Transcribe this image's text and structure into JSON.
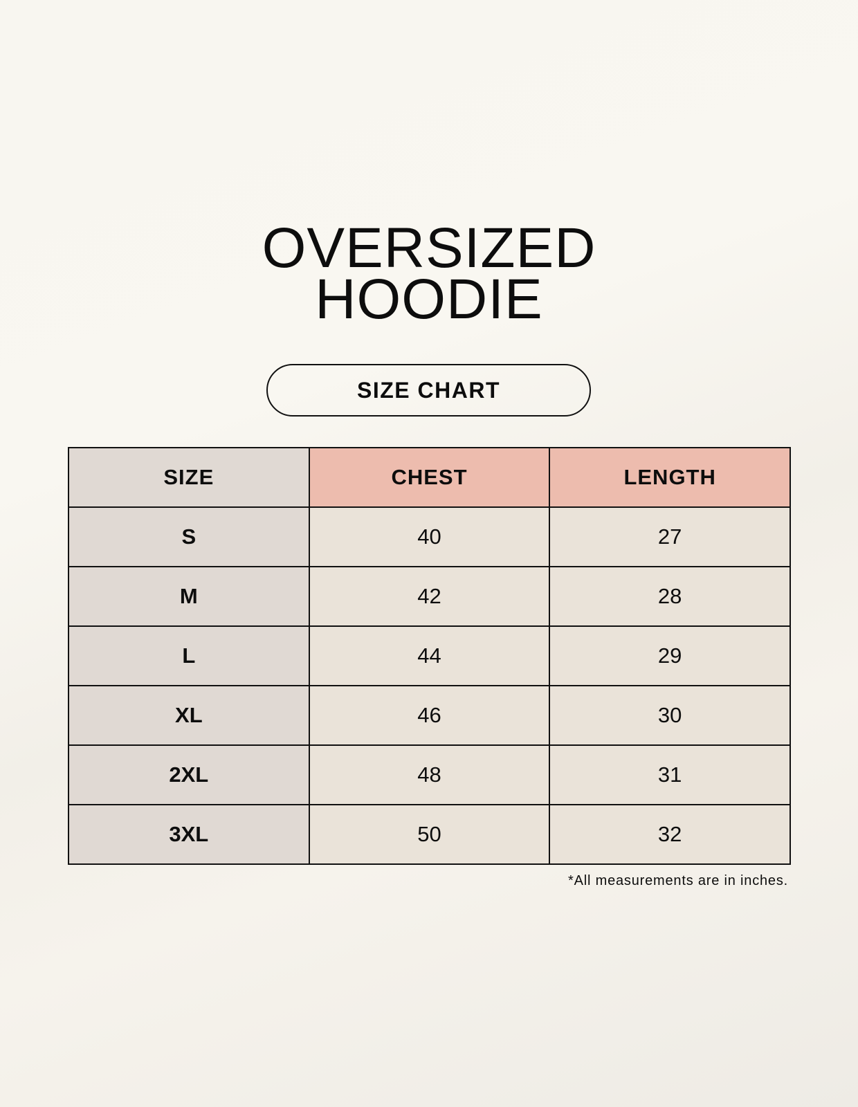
{
  "title": {
    "line1": "OVERSIZED",
    "line2": "HOODIE"
  },
  "subtitle": "SIZE CHART",
  "table": {
    "headers": [
      "SIZE",
      "CHEST",
      "LENGTH"
    ],
    "rows": [
      [
        "S",
        "40",
        "27"
      ],
      [
        "M",
        "42",
        "28"
      ],
      [
        "L",
        "44",
        "29"
      ],
      [
        "XL",
        "46",
        "30"
      ],
      [
        "2XL",
        "48",
        "31"
      ],
      [
        "3XL",
        "50",
        "32"
      ]
    ]
  },
  "note": "*All measurements are in inches.",
  "colors": {
    "size_column": "#e0d9d3",
    "header_accent": "#edbcae",
    "value_cells": "#eae3d9"
  }
}
